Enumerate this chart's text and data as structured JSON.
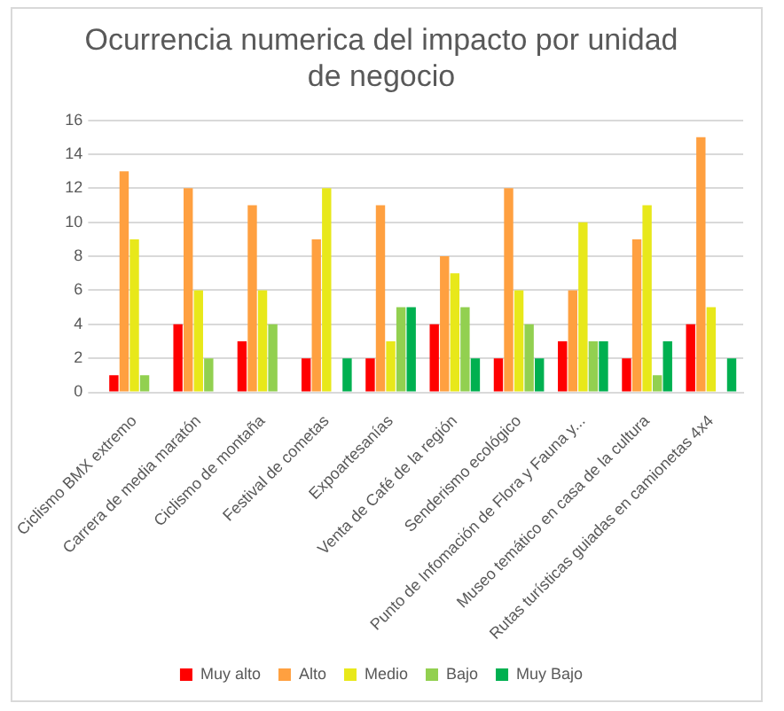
{
  "chart_data": {
    "type": "bar",
    "title": "Ocurrencia numerica del impacto por unidad de negocio",
    "categories": [
      "Ciclismo BMX extremo",
      "Carrera de media maratón",
      "Ciclismo de montaña",
      "Festival de cometas",
      "Expoartesanías",
      "Venta de Café de la región",
      "Senderismo ecológico",
      "Punto de Infomación de Flora y Fauna y...",
      "Museo temático en casa de la cultura",
      "Rutas turísticas guiadas en camionetas 4x4"
    ],
    "series": [
      {
        "name": "Muy alto",
        "color": "#ff0000",
        "values": [
          1,
          4,
          3,
          2,
          2,
          4,
          2,
          3,
          2,
          4
        ]
      },
      {
        "name": "Alto",
        "color": "#ffa040",
        "values": [
          13,
          12,
          11,
          9,
          11,
          8,
          12,
          6,
          9,
          15
        ]
      },
      {
        "name": "Medio",
        "color": "#e8e81a",
        "values": [
          9,
          6,
          6,
          12,
          3,
          7,
          6,
          10,
          11,
          5
        ]
      },
      {
        "name": "Bajo",
        "color": "#92d050",
        "values": [
          1,
          2,
          4,
          0,
          5,
          5,
          4,
          3,
          1,
          0
        ]
      },
      {
        "name": "Muy Bajo",
        "color": "#00b050",
        "values": [
          0,
          0,
          0,
          2,
          5,
          2,
          2,
          3,
          3,
          2
        ]
      }
    ],
    "ylim": [
      0,
      16
    ],
    "yticks": [
      0,
      2,
      4,
      6,
      8,
      10,
      12,
      14,
      16
    ],
    "grid": "y",
    "legend": "bottom"
  }
}
